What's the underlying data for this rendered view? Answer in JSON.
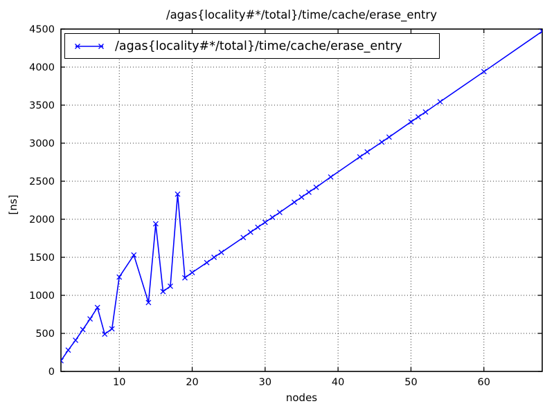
{
  "colors": {
    "line": "#0000ff",
    "frame": "#000000",
    "grid": "#000000",
    "background": "#ffffff"
  },
  "chart_data": {
    "type": "line",
    "title": "/agas{locality#*/total}/time/cache/erase_entry",
    "xlabel": "nodes",
    "ylabel": "[ns]",
    "xlim": [
      2,
      68
    ],
    "ylim": [
      0,
      4500
    ],
    "xticks": [
      10,
      20,
      30,
      40,
      50,
      60
    ],
    "yticks": [
      0,
      500,
      1000,
      1500,
      2000,
      2500,
      3000,
      3500,
      4000,
      4500
    ],
    "grid": true,
    "legend_position": "upper center",
    "series": [
      {
        "name": "/agas{locality#*/total}/time/cache/erase_entry",
        "color": "#0000ff",
        "marker": "x",
        "x": [
          2,
          3,
          4,
          5,
          6,
          7,
          8,
          9,
          10,
          12,
          14,
          15,
          16,
          17,
          18,
          19,
          20,
          22,
          23,
          24,
          27,
          28,
          29,
          30,
          31,
          32,
          34,
          35,
          36,
          37,
          39,
          43,
          44,
          46,
          47,
          50,
          51,
          52,
          54,
          60,
          68
        ],
        "y": [
          140,
          280,
          410,
          550,
          690,
          840,
          490,
          560,
          1240,
          1530,
          905,
          1940,
          1050,
          1120,
          2330,
          1230,
          1300,
          1430,
          1500,
          1565,
          1760,
          1830,
          1895,
          1960,
          2025,
          2090,
          2225,
          2290,
          2355,
          2420,
          2555,
          2820,
          2885,
          3015,
          3080,
          3280,
          3345,
          3410,
          3545,
          3940,
          4470
        ]
      }
    ]
  }
}
